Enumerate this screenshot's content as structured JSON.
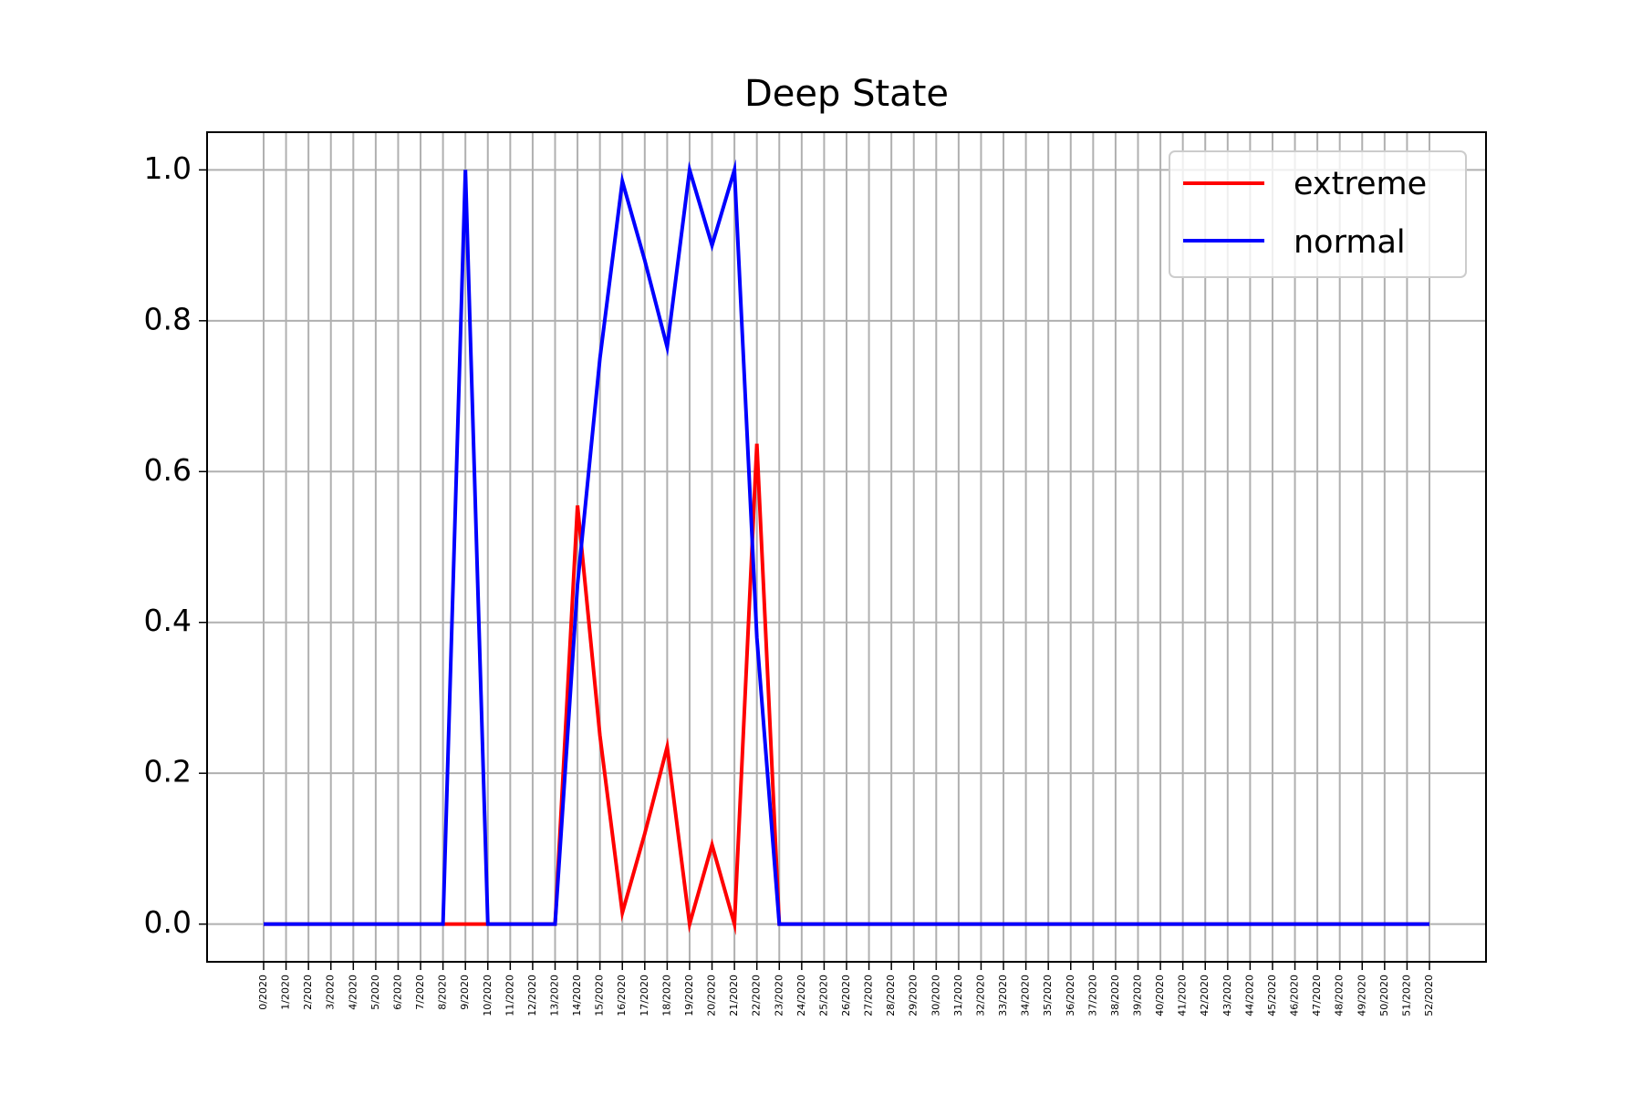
{
  "chart_data": {
    "type": "line",
    "title": "Deep State",
    "xlabel": "",
    "ylabel": "",
    "categories": [
      "0/2020",
      "1/2020",
      "2/2020",
      "3/2020",
      "4/2020",
      "5/2020",
      "6/2020",
      "7/2020",
      "8/2020",
      "9/2020",
      "10/2020",
      "11/2020",
      "12/2020",
      "13/2020",
      "14/2020",
      "15/2020",
      "16/2020",
      "17/2020",
      "18/2020",
      "19/2020",
      "20/2020",
      "21/2020",
      "22/2020",
      "23/2020",
      "24/2020",
      "25/2020",
      "26/2020",
      "27/2020",
      "28/2020",
      "29/2020",
      "30/2020",
      "31/2020",
      "32/2020",
      "33/2020",
      "34/2020",
      "35/2020",
      "36/2020",
      "37/2020",
      "38/2020",
      "39/2020",
      "40/2020",
      "41/2020",
      "42/2020",
      "43/2020",
      "44/2020",
      "45/2020",
      "46/2020",
      "47/2020",
      "48/2020",
      "49/2020",
      "50/2020",
      "51/2020",
      "52/2020"
    ],
    "series": [
      {
        "name": "extreme",
        "color": "#ff0000",
        "values": [
          0,
          0,
          0,
          0,
          0,
          0,
          0,
          0,
          0,
          0,
          0,
          0,
          0,
          0,
          0.555,
          0.25,
          0.015,
          0.12,
          0.235,
          0,
          0.105,
          0,
          0.637,
          0,
          0,
          0,
          0,
          0,
          0,
          0,
          0,
          0,
          0,
          0,
          0,
          0,
          0,
          0,
          0,
          0,
          0,
          0,
          0,
          0,
          0,
          0,
          0,
          0,
          0,
          0,
          0,
          0,
          0
        ]
      },
      {
        "name": "normal",
        "color": "#0000ff",
        "values": [
          0,
          0,
          0,
          0,
          0,
          0,
          0,
          0,
          0,
          1.0,
          0,
          0,
          0,
          0,
          0.45,
          0.75,
          0.985,
          0.88,
          0.765,
          1.0,
          0.9,
          1.0,
          0.38,
          0,
          0,
          0,
          0,
          0,
          0,
          0,
          0,
          0,
          0,
          0,
          0,
          0,
          0,
          0,
          0,
          0,
          0,
          0,
          0,
          0,
          0,
          0,
          0,
          0,
          0,
          0,
          0,
          0,
          0
        ]
      }
    ],
    "yticks": [
      "0.0",
      "0.2",
      "0.4",
      "0.6",
      "0.8",
      "1.0"
    ],
    "ylim": [
      -0.05,
      1.05
    ],
    "grid": true,
    "legend_position": "top-right"
  }
}
